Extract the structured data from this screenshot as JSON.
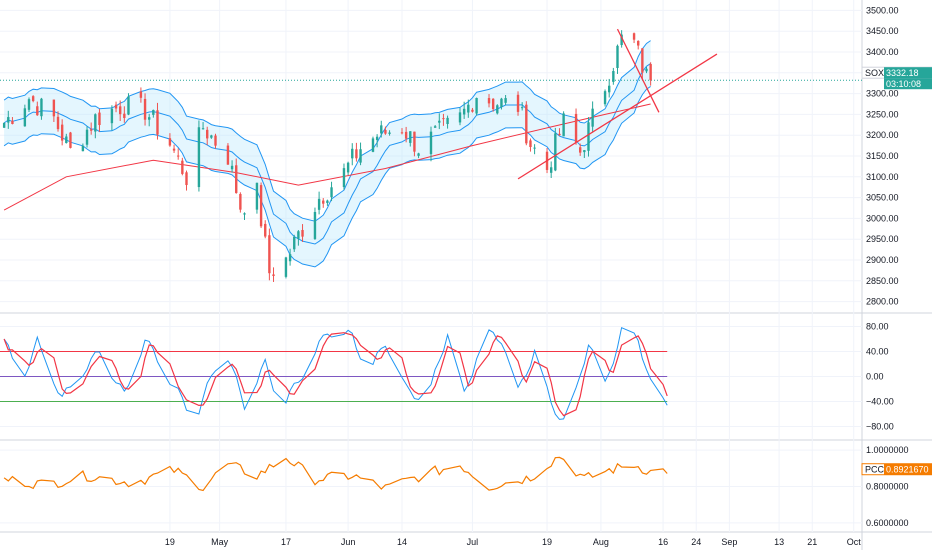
{
  "chart_data": [
    {
      "type": "candlestick",
      "symbol": "SOX",
      "last_price": "3332.18",
      "countdown": "03:10:08",
      "ylim": [
        2775,
        3525
      ],
      "y_ticks": [
        "3500.00",
        "3450.00",
        "3400.00",
        "3350.00",
        "3300.00",
        "3250.00",
        "3200.00",
        "3150.00",
        "3100.00",
        "3050.00",
        "3000.00",
        "2950.00",
        "2900.00",
        "2850.00",
        "2800.00"
      ],
      "x_tick_labels": [
        "19",
        "May",
        "17",
        "Jun",
        "14",
        "Jul",
        "19",
        "Aug",
        "16",
        "24",
        "Sep",
        "13",
        "21",
        "Oct"
      ],
      "close_path": [
        {
          "d": "2021-03-10",
          "c": 3230
        },
        {
          "d": "2021-03-16",
          "c": 3290
        },
        {
          "d": "2021-03-22",
          "c": 3240
        },
        {
          "d": "2021-03-26",
          "c": 3160
        },
        {
          "d": "2021-04-01",
          "c": 3240
        },
        {
          "d": "2021-04-07",
          "c": 3270
        },
        {
          "d": "2021-04-13",
          "c": 3260
        },
        {
          "d": "2021-04-19",
          "c": 3180
        },
        {
          "d": "2021-04-23",
          "c": 3100
        },
        {
          "d": "2021-04-27",
          "c": 3220
        },
        {
          "d": "2021-05-03",
          "c": 3150
        },
        {
          "d": "2021-05-06",
          "c": 3030
        },
        {
          "d": "2021-05-10",
          "c": 3060
        },
        {
          "d": "2021-05-13",
          "c": 2870
        },
        {
          "d": "2021-05-17",
          "c": 2900
        },
        {
          "d": "2021-05-20",
          "c": 2960
        },
        {
          "d": "2021-05-25",
          "c": 3050
        },
        {
          "d": "2021-05-31",
          "c": 3110
        },
        {
          "d": "2021-06-04",
          "c": 3170
        },
        {
          "d": "2021-06-08",
          "c": 3200
        },
        {
          "d": "2021-06-14",
          "c": 3220
        },
        {
          "d": "2021-06-18",
          "c": 3170
        },
        {
          "d": "2021-06-22",
          "c": 3200
        },
        {
          "d": "2021-06-28",
          "c": 3240
        },
        {
          "d": "2021-07-02",
          "c": 3300
        },
        {
          "d": "2021-07-06",
          "c": 3280
        },
        {
          "d": "2021-07-12",
          "c": 3270
        },
        {
          "d": "2021-07-15",
          "c": 3180
        },
        {
          "d": "2021-07-19",
          "c": 3120
        },
        {
          "d": "2021-07-23",
          "c": 3230
        },
        {
          "d": "2021-07-27",
          "c": 3160
        },
        {
          "d": "2021-08-02",
          "c": 3320
        },
        {
          "d": "2021-08-06",
          "c": 3430
        },
        {
          "d": "2021-08-09",
          "c": 3420
        },
        {
          "d": "2021-08-12",
          "c": 3340
        },
        {
          "d": "2021-08-13",
          "c": 3332.18
        }
      ],
      "band_width": 55,
      "ma_path": [
        {
          "d": "2021-03-10",
          "c": 3020
        },
        {
          "d": "2021-03-25",
          "c": 3100
        },
        {
          "d": "2021-04-15",
          "c": 3140
        },
        {
          "d": "2021-05-05",
          "c": 3110
        },
        {
          "d": "2021-05-20",
          "c": 3080
        },
        {
          "d": "2021-06-10",
          "c": 3120
        },
        {
          "d": "2021-07-01",
          "c": 3175
        },
        {
          "d": "2021-07-20",
          "c": 3220
        },
        {
          "d": "2021-08-02",
          "c": 3250
        },
        {
          "d": "2021-08-13",
          "c": 3275
        }
      ],
      "trend_lines": [
        {
          "from": {
            "d": "2021-07-12",
            "c": 3095
          },
          "to": {
            "d": "2021-08-29",
            "c": 3395
          },
          "color": "#f23645"
        },
        {
          "from": {
            "d": "2021-08-05",
            "c": 3455
          },
          "to": {
            "d": "2021-08-15",
            "c": 3255
          },
          "color": "#f23645"
        }
      ],
      "colors": {
        "up": "#26a69a",
        "down": "#ef5350",
        "band": "#2196f3",
        "band_fill": "#b3e5fc",
        "ma": "#f23645",
        "last_price": "#26a69a"
      }
    },
    {
      "type": "line",
      "panel": "oscillator",
      "ylim": [
        -100,
        100
      ],
      "y_ticks": [
        "80.00",
        "40.00",
        "0.00",
        "−40.00",
        "−80.00"
      ],
      "levels": [
        {
          "value": 40,
          "color": "#f23645"
        },
        {
          "value": 0,
          "color": "#7e57c2"
        },
        {
          "value": -40,
          "color": "#4caf50"
        }
      ],
      "series_points": [
        {
          "d": "2021-03-10",
          "v": 60
        },
        {
          "d": "2021-03-14",
          "v": -10
        },
        {
          "d": "2021-03-18",
          "v": 55
        },
        {
          "d": "2021-03-24",
          "v": -35
        },
        {
          "d": "2021-03-28",
          "v": 0
        },
        {
          "d": "2021-04-02",
          "v": 40
        },
        {
          "d": "2021-04-08",
          "v": -30
        },
        {
          "d": "2021-04-13",
          "v": 60
        },
        {
          "d": "2021-04-19",
          "v": -5
        },
        {
          "d": "2021-04-25",
          "v": -70
        },
        {
          "d": "2021-05-02",
          "v": 50
        },
        {
          "d": "2021-05-07",
          "v": -45
        },
        {
          "d": "2021-05-12",
          "v": 20
        },
        {
          "d": "2021-05-16",
          "v": -50
        },
        {
          "d": "2021-05-22",
          "v": 15
        },
        {
          "d": "2021-05-27",
          "v": 72
        },
        {
          "d": "2021-06-02",
          "v": 65
        },
        {
          "d": "2021-06-06",
          "v": 5
        },
        {
          "d": "2021-06-10",
          "v": 55
        },
        {
          "d": "2021-06-15",
          "v": -20
        },
        {
          "d": "2021-06-20",
          "v": -40
        },
        {
          "d": "2021-06-25",
          "v": 70
        },
        {
          "d": "2021-06-29",
          "v": -30
        },
        {
          "d": "2021-07-04",
          "v": 70
        },
        {
          "d": "2021-07-08",
          "v": 60
        },
        {
          "d": "2021-07-12",
          "v": -25
        },
        {
          "d": "2021-07-16",
          "v": 40
        },
        {
          "d": "2021-07-20",
          "v": -45
        },
        {
          "d": "2021-07-24",
          "v": -80
        },
        {
          "d": "2021-07-29",
          "v": 55
        },
        {
          "d": "2021-08-02",
          "v": -15
        },
        {
          "d": "2021-08-06",
          "v": 72
        },
        {
          "d": "2021-08-10",
          "v": 60
        },
        {
          "d": "2021-08-14",
          "v": -35
        },
        {
          "d": "2021-08-17",
          "v": -42
        }
      ],
      "colors": {
        "main": "#f23645",
        "signal": "#2196f3"
      }
    },
    {
      "type": "line",
      "panel": "PCC",
      "label": "PCC",
      "last_value": "0.8921670",
      "ylim": [
        0.55,
        1.05
      ],
      "y_ticks": [
        "1.0000000",
        "0.8000000",
        "0.6000000"
      ],
      "series_points": [
        {
          "d": "2021-03-10",
          "v": 0.84
        },
        {
          "d": "2021-03-20",
          "v": 0.81
        },
        {
          "d": "2021-03-30",
          "v": 0.86
        },
        {
          "d": "2021-04-10",
          "v": 0.82
        },
        {
          "d": "2021-04-20",
          "v": 0.89
        },
        {
          "d": "2021-04-27",
          "v": 0.8
        },
        {
          "d": "2021-05-03",
          "v": 0.92
        },
        {
          "d": "2021-05-10",
          "v": 0.86
        },
        {
          "d": "2021-05-17",
          "v": 0.96
        },
        {
          "d": "2021-05-24",
          "v": 0.84
        },
        {
          "d": "2021-06-02",
          "v": 0.86
        },
        {
          "d": "2021-06-10",
          "v": 0.79
        },
        {
          "d": "2021-06-20",
          "v": 0.87
        },
        {
          "d": "2021-06-28",
          "v": 0.92
        },
        {
          "d": "2021-07-05",
          "v": 0.8
        },
        {
          "d": "2021-07-15",
          "v": 0.85
        },
        {
          "d": "2021-07-22",
          "v": 0.97
        },
        {
          "d": "2021-07-28",
          "v": 0.84
        },
        {
          "d": "2021-08-03",
          "v": 0.89
        },
        {
          "d": "2021-08-09",
          "v": 0.92
        },
        {
          "d": "2021-08-13",
          "v": 0.88
        },
        {
          "d": "2021-08-17",
          "v": 0.89
        }
      ],
      "colors": {
        "line": "#f57c00"
      }
    }
  ]
}
